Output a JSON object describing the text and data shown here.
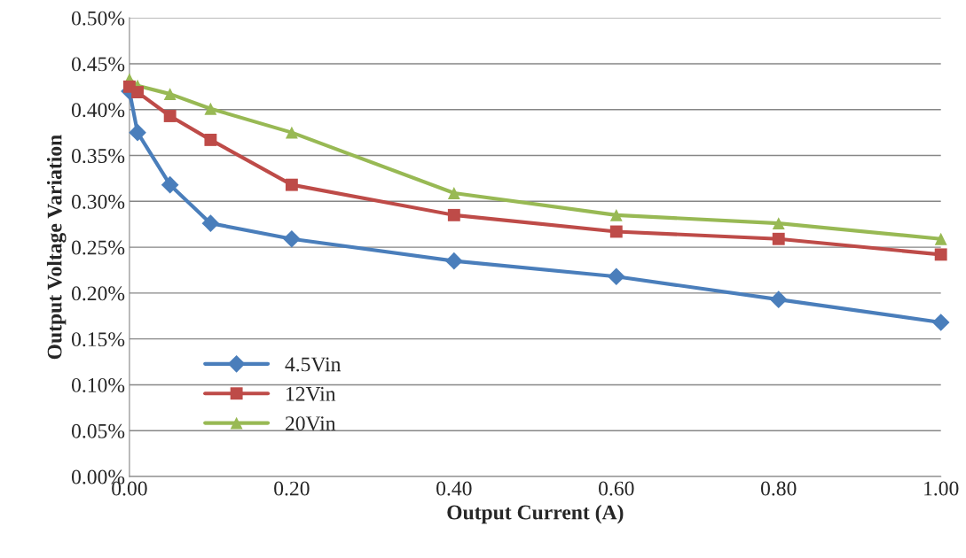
{
  "chart_data": {
    "type": "line",
    "xlabel": "Output Current (A)",
    "ylabel": "Output Voltage Variation",
    "x": [
      0,
      0.01,
      0.05,
      0.1,
      0.2,
      0.4,
      0.6,
      0.8,
      1.0
    ],
    "series": [
      {
        "name": "4.5Vin",
        "color": "#4a7ebb",
        "marker": "diamond",
        "values": [
          0.42,
          0.375,
          0.318,
          0.276,
          0.259,
          0.235,
          0.218,
          0.193,
          0.168
        ]
      },
      {
        "name": "12Vin",
        "color": "#be4b48",
        "marker": "square",
        "values": [
          0.425,
          0.419,
          0.393,
          0.367,
          0.318,
          0.285,
          0.267,
          0.259,
          0.242
        ]
      },
      {
        "name": "20Vin",
        "color": "#98b954",
        "marker": "triangle",
        "values": [
          0.433,
          0.426,
          0.417,
          0.401,
          0.375,
          0.309,
          0.285,
          0.276,
          0.259
        ]
      }
    ],
    "xlim": [
      0,
      1.0
    ],
    "xticks": [
      {
        "value": 0,
        "label": "0.00"
      },
      {
        "value": 0.2,
        "label": "0.20"
      },
      {
        "value": 0.4,
        "label": "0.40"
      },
      {
        "value": 0.6,
        "label": "0.60"
      },
      {
        "value": 0.8,
        "label": "0.80"
      },
      {
        "value": 1.0,
        "label": "1.00"
      }
    ],
    "ylim": [
      0,
      0.5
    ],
    "yticks": [
      {
        "value": 0,
        "label": "0.00%"
      },
      {
        "value": 0.05,
        "label": "0.05%"
      },
      {
        "value": 0.1,
        "label": "0.10%"
      },
      {
        "value": 0.15,
        "label": "0.15%"
      },
      {
        "value": 0.2,
        "label": "0.20%"
      },
      {
        "value": 0.25,
        "label": "0.25%"
      },
      {
        "value": 0.3,
        "label": "0.30%"
      },
      {
        "value": 0.35,
        "label": "0.35%"
      },
      {
        "value": 0.4,
        "label": "0.40%"
      },
      {
        "value": 0.45,
        "label": "0.45%"
      },
      {
        "value": 0.5,
        "label": "0.50%"
      }
    ],
    "grid": "y",
    "legend": "lower left",
    "line_style": "solid"
  }
}
